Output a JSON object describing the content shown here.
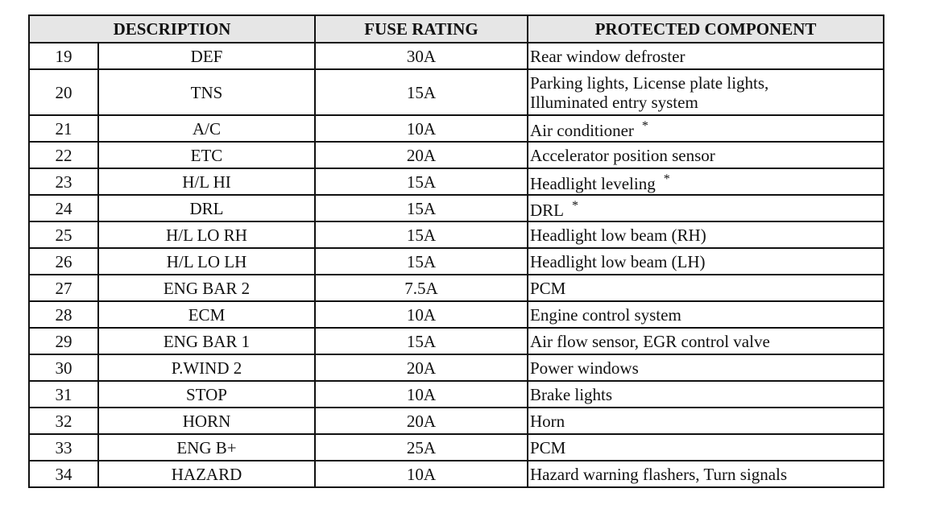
{
  "headers": {
    "description": "DESCRIPTION",
    "fuse_rating": "FUSE RATING",
    "protected_component": "PROTECTED COMPONENT"
  },
  "rows": [
    {
      "no": "19",
      "desc": "DEF",
      "rating": "30A",
      "component": "Rear window defroster",
      "note": ""
    },
    {
      "no": "20",
      "desc": "TNS",
      "rating": "15A",
      "component": "Parking lights, License plate lights,",
      "component2": "Illuminated entry system",
      "note": ""
    },
    {
      "no": "21",
      "desc": "A/C",
      "rating": "10A",
      "component": "Air conditioner",
      "note": "*"
    },
    {
      "no": "22",
      "desc": "ETC",
      "rating": "20A",
      "component": "Accelerator position sensor",
      "note": ""
    },
    {
      "no": "23",
      "desc": "H/L HI",
      "rating": "15A",
      "component": "Headlight leveling",
      "note": "*"
    },
    {
      "no": "24",
      "desc": "DRL",
      "rating": "15A",
      "component": "DRL",
      "note": "*"
    },
    {
      "no": "25",
      "desc": "H/L LO RH",
      "rating": "15A",
      "component": "Headlight low beam (RH)",
      "note": ""
    },
    {
      "no": "26",
      "desc": "H/L LO LH",
      "rating": "15A",
      "component": "Headlight low beam (LH)",
      "note": ""
    },
    {
      "no": "27",
      "desc": "ENG BAR 2",
      "rating": "7.5A",
      "component": "PCM",
      "note": ""
    },
    {
      "no": "28",
      "desc": "ECM",
      "rating": "10A",
      "component": "Engine control system",
      "note": ""
    },
    {
      "no": "29",
      "desc": "ENG BAR 1",
      "rating": "15A",
      "component": "Air flow sensor, EGR control valve",
      "note": ""
    },
    {
      "no": "30",
      "desc": "P.WIND 2",
      "rating": "20A",
      "component": "Power windows",
      "note": ""
    },
    {
      "no": "31",
      "desc": "STOP",
      "rating": "10A",
      "component": "Brake lights",
      "note": ""
    },
    {
      "no": "32",
      "desc": "HORN",
      "rating": "20A",
      "component": "Horn",
      "note": ""
    },
    {
      "no": "33",
      "desc": "ENG B+",
      "rating": "25A",
      "component": "PCM",
      "note": ""
    },
    {
      "no": "34",
      "desc": "HAZARD",
      "rating": "10A",
      "component": "Hazard warning flashers, Turn signals",
      "note": ""
    }
  ]
}
